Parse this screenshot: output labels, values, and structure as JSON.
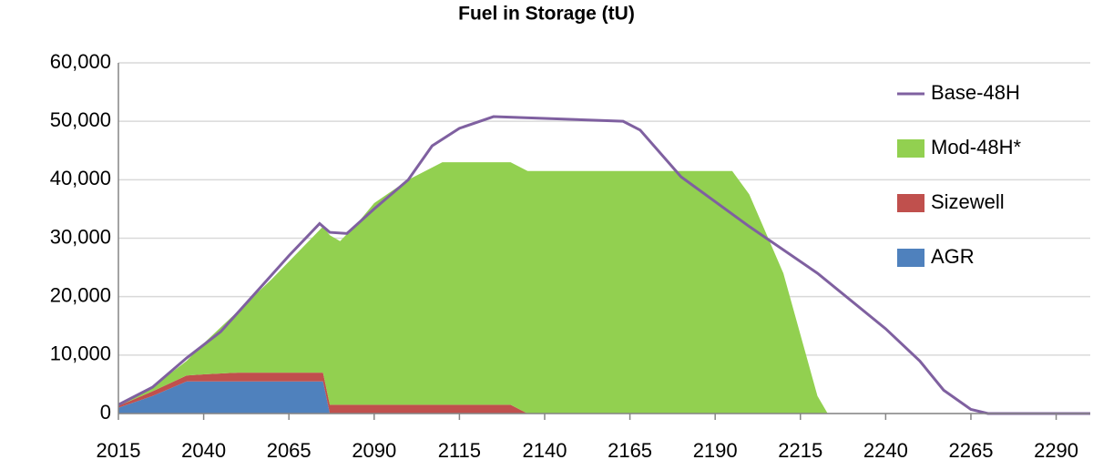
{
  "chart_data": {
    "type": "stacked-area",
    "title": "Fuel in Storage (tU)",
    "x": [
      2015,
      2025,
      2035,
      2040,
      2050,
      2060,
      2070,
      2075,
      2077,
      2080,
      2085,
      2090,
      2100,
      2110,
      2130,
      2135,
      2160,
      2195,
      2200,
      2210,
      2220,
      2223,
      2300
    ],
    "series": [
      {
        "name": "AGR",
        "color": "#4f81bd",
        "values": [
          1000,
          3000,
          5500,
          5500,
          5500,
          5500,
          5500,
          5500,
          0,
          0,
          0,
          0,
          0,
          0,
          0,
          0,
          0,
          0,
          0,
          0,
          0,
          0,
          0
        ]
      },
      {
        "name": "Sizewell",
        "color": "#c0504d",
        "values": [
          300,
          800,
          1000,
          1200,
          1500,
          1500,
          1500,
          1500,
          1500,
          1500,
          1500,
          1500,
          1500,
          1500,
          1500,
          0,
          0,
          0,
          0,
          0,
          0,
          0,
          0
        ]
      },
      {
        "name": "Mod-48H*",
        "color": "#92d050",
        "values": [
          200,
          700,
          2500,
          5300,
          10500,
          16000,
          22000,
          25000,
          29000,
          28000,
          31000,
          34500,
          38500,
          41500,
          41500,
          41500,
          41500,
          41500,
          37500,
          24000,
          3000,
          0,
          0
        ]
      },
      {
        "name": "Base-48H",
        "color": "#7f60a0",
        "type": "line",
        "x": [
          2015,
          2025,
          2035,
          2045,
          2055,
          2065,
          2074,
          2077,
          2082,
          2090,
          2100,
          2107,
          2115,
          2125,
          2140,
          2163,
          2168,
          2180,
          2200,
          2220,
          2240,
          2250,
          2257,
          2265,
          2270,
          2300
        ],
        "values": [
          1500,
          4500,
          9500,
          14000,
          20500,
          27000,
          32500,
          31000,
          30800,
          35000,
          40000,
          45800,
          48800,
          50800,
          50500,
          50000,
          48500,
          40500,
          32000,
          24000,
          14500,
          9000,
          4000,
          700,
          0,
          0
        ]
      }
    ],
    "xlim": [
      2015,
      2300
    ],
    "xticks": [
      2015,
      2040,
      2065,
      2090,
      2115,
      2140,
      2165,
      2190,
      2215,
      2240,
      2265,
      2290
    ],
    "ylim": [
      0,
      60000
    ],
    "yticks": [
      0,
      {
        "value": 10000,
        "label": "10,000"
      },
      {
        "value": 20000,
        "label": "20,000"
      },
      {
        "value": 30000,
        "label": "30,000"
      },
      {
        "value": 40000,
        "label": "40,000"
      },
      {
        "value": 50000,
        "label": "50,000"
      },
      {
        "value": 60000,
        "label": "60,000"
      }
    ],
    "grid": true,
    "legend": "right"
  }
}
